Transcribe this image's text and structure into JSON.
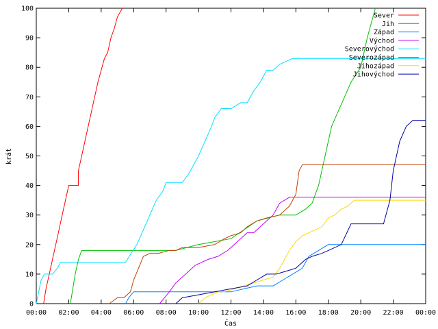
{
  "chart_data": {
    "type": "line",
    "xlabel": "Čas",
    "ylabel": "krát",
    "xlim": [
      0,
      24
    ],
    "ylim": [
      0,
      100
    ],
    "x_ticks": [
      "00:00",
      "02:00",
      "04:00",
      "06:00",
      "08:00",
      "10:00",
      "12:00",
      "14:00",
      "16:00",
      "18:00",
      "20:00",
      "22:00",
      "00:00"
    ],
    "y_ticks": [
      "0",
      "10",
      "20",
      "30",
      "40",
      "50",
      "60",
      "70",
      "80",
      "90",
      "100"
    ],
    "grid": false,
    "legend_position": "top-right",
    "series": [
      {
        "name": "Sever",
        "color": "#ff0000",
        "x": [
          0.45,
          0.6,
          0.8,
          1.0,
          1.2,
          1.4,
          1.6,
          1.8,
          2.0,
          2.6,
          2.6,
          3.0,
          3.4,
          3.8,
          4.2,
          4.4,
          4.6,
          4.8,
          5.0,
          5.3
        ],
        "y": [
          0,
          5,
          10,
          15,
          20,
          25,
          30,
          35,
          40,
          40,
          45,
          55,
          65,
          75,
          83,
          85,
          90,
          93,
          97,
          100
        ]
      },
      {
        "name": "Jih",
        "color": "#00c000",
        "x": [
          2.1,
          2.4,
          2.6,
          2.8,
          4.2,
          8.6,
          8.6,
          10.0,
          11.0,
          12.0,
          13.6,
          15.0,
          16.0,
          16.6,
          17.0,
          17.4,
          17.8,
          18.2,
          18.6,
          19.0,
          19.4,
          20.0,
          20.4,
          20.9
        ],
        "y": [
          0,
          10,
          15,
          18,
          18,
          18,
          18,
          20,
          21,
          22,
          28,
          30,
          30,
          32,
          34,
          40,
          50,
          60,
          65,
          70,
          75,
          80,
          90,
          100
        ]
      },
      {
        "name": "Západ",
        "color": "#0080ff",
        "x": [
          5.5,
          5.7,
          6.0,
          7.0,
          8.0,
          10.0,
          12.0,
          12.8,
          13.6,
          14.6,
          15.2,
          15.8,
          16.4,
          16.8,
          17.4,
          18.0,
          22.0,
          24.0
        ],
        "y": [
          0,
          2,
          4,
          4,
          4,
          4,
          4,
          5,
          6,
          6,
          8,
          10,
          12,
          16,
          18,
          20,
          20,
          20
        ]
      },
      {
        "name": "Východ",
        "color": "#c000ff",
        "x": [
          7.6,
          7.9,
          8.2,
          8.6,
          9.0,
          9.4,
          9.8,
          10.6,
          11.2,
          11.8,
          12.2,
          12.6,
          13.0,
          13.4,
          13.8,
          14.2,
          14.6,
          15.0,
          15.6,
          16.0,
          18.0,
          24.0
        ],
        "y": [
          0,
          2,
          4,
          7,
          9,
          11,
          13,
          15,
          16,
          18,
          20,
          22,
          24,
          24,
          26,
          28,
          30,
          34,
          36,
          36,
          36,
          36
        ]
      },
      {
        "name": "Severovýchod",
        "color": "#00e0ff",
        "x": [
          0.0,
          0.3,
          0.5,
          1.0,
          1.3,
          1.5,
          4.0,
          5.5,
          6.2,
          6.6,
          7.0,
          7.4,
          7.8,
          8.0,
          8.4,
          9.0,
          9.4,
          10.0,
          10.4,
          10.8,
          11.0,
          11.4,
          12.0,
          12.6,
          13.0,
          13.4,
          13.8,
          14.2,
          14.6,
          15.0,
          15.8,
          16.2,
          17.0,
          18.0,
          20.0,
          24.0
        ],
        "y": [
          0,
          8,
          10,
          10,
          12,
          14,
          14,
          14,
          20,
          25,
          30,
          35,
          38,
          41,
          41,
          41,
          44,
          50,
          55,
          60,
          63,
          66,
          66,
          68,
          68,
          72,
          75,
          79,
          79,
          81,
          83,
          83,
          83,
          83,
          83,
          83
        ]
      },
      {
        "name": "Severozápad",
        "color": "#c04000",
        "x": [
          4.5,
          5.0,
          5.4,
          5.8,
          6.0,
          6.3,
          6.6,
          7.0,
          7.5,
          8.2,
          8.6,
          9.0,
          10.0,
          11.0,
          11.6,
          12.0,
          12.6,
          13.0,
          13.6,
          14.2,
          15.0,
          15.6,
          16.0,
          16.2,
          16.4,
          17.0,
          20.0,
          24.0
        ],
        "y": [
          0,
          2,
          2,
          4,
          8,
          12,
          16,
          17,
          17,
          18,
          18,
          19,
          19,
          20,
          22,
          23,
          24,
          26,
          28,
          29,
          30,
          33,
          37,
          45,
          47,
          47,
          47,
          47
        ]
      },
      {
        "name": "Jihozápad",
        "color": "#ffd800",
        "x": [
          10.0,
          10.4,
          10.8,
          11.2,
          11.6,
          12.2,
          12.8,
          13.4,
          14.0,
          14.6,
          15.0,
          15.2,
          15.6,
          16.0,
          16.4,
          16.8,
          17.2,
          17.6,
          18.0,
          18.4,
          18.8,
          19.2,
          19.6,
          20.4,
          24.0
        ],
        "y": [
          0,
          2,
          3,
          4,
          4,
          5,
          6,
          7,
          8,
          9,
          12,
          14,
          18,
          21,
          23,
          24,
          25,
          26,
          29,
          30,
          32,
          33,
          35,
          35,
          35
        ]
      },
      {
        "name": "Jihovýchod",
        "color": "#0000a0",
        "x": [
          8.6,
          9.0,
          10.0,
          11.0,
          12.0,
          13.0,
          13.6,
          14.2,
          14.8,
          15.4,
          16.0,
          16.6,
          17.0,
          17.6,
          18.0,
          18.8,
          19.4,
          20.4,
          21.0,
          21.4,
          21.8,
          22.0,
          22.4,
          22.8,
          23.2,
          24.0
        ],
        "y": [
          0,
          2,
          3,
          4,
          5,
          6,
          8,
          10,
          10,
          11,
          12,
          15,
          16,
          17,
          18,
          20,
          27,
          27,
          27,
          27,
          35,
          45,
          55,
          60,
          62,
          62
        ]
      }
    ]
  }
}
